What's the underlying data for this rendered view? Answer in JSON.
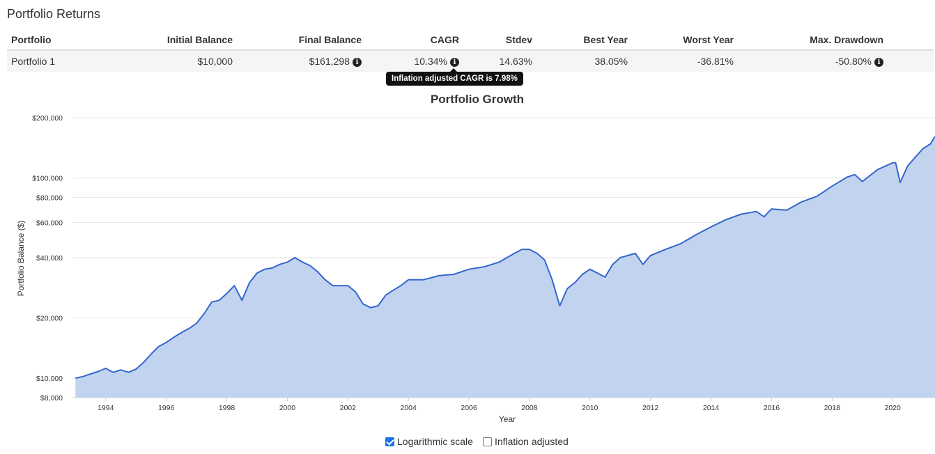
{
  "section_title": "Portfolio Returns",
  "table": {
    "headers": [
      "Portfolio",
      "Initial Balance",
      "Final Balance",
      "CAGR",
      "Stdev",
      "Best Year",
      "Worst Year",
      "Max. Drawdown"
    ],
    "rows": [
      {
        "portfolio": "Portfolio 1",
        "initial_balance": "$10,000",
        "final_balance": "$161,298",
        "cagr": "10.34%",
        "stdev": "14.63%",
        "best_year": "38.05%",
        "worst_year": "-36.81%",
        "max_drawdown": "-50.80%"
      }
    ]
  },
  "tooltip": "Inflation adjusted CAGR is 7.98%",
  "controls": {
    "log_scale_label": "Logarithmic scale",
    "log_scale_checked": true,
    "inflation_label": "Inflation adjusted",
    "inflation_checked": false
  },
  "chart_data": {
    "type": "area",
    "title": "Portfolio Growth",
    "xlabel": "Year",
    "ylabel": "Portfolio Balance ($)",
    "yscale": "log",
    "ylim": [
      8000,
      200000
    ],
    "xlim": [
      1992.9,
      2021.4
    ],
    "yticks": [
      8000,
      10000,
      20000,
      40000,
      60000,
      80000,
      100000,
      200000
    ],
    "ytick_labels": [
      "$8,000",
      "$10,000",
      "$20,000",
      "$40,000",
      "$60,000",
      "$80,000",
      "$100,000",
      "$200,000"
    ],
    "xticks": [
      1994,
      1996,
      1998,
      2000,
      2002,
      2004,
      2006,
      2008,
      2010,
      2012,
      2014,
      2016,
      2018,
      2020
    ],
    "grid": true,
    "line_color": "#3366cc",
    "fill_color": "#c2d3f0",
    "series": [
      {
        "x": [
          1993.0,
          1993.25,
          1993.5,
          1993.75,
          1994.0,
          1994.25,
          1994.5,
          1994.75,
          1995.0,
          1995.25,
          1995.5,
          1995.75,
          1996.0,
          1996.25,
          1996.5,
          1996.75,
          1997.0,
          1997.25,
          1997.5,
          1997.75,
          1998.0,
          1998.25,
          1998.5,
          1998.75,
          1999.0,
          1999.25,
          1999.5,
          1999.75,
          2000.0,
          2000.25,
          2000.5,
          2000.75,
          2001.0,
          2001.25,
          2001.5,
          2001.75,
          2002.0,
          2002.25,
          2002.5,
          2002.75,
          2003.0,
          2003.25,
          2003.5,
          2003.75,
          2004.0,
          2004.5,
          2005.0,
          2005.5,
          2006.0,
          2006.5,
          2007.0,
          2007.5,
          2007.75,
          2008.0,
          2008.25,
          2008.5,
          2008.75,
          2009.0,
          2009.25,
          2009.5,
          2009.75,
          2010.0,
          2010.5,
          2010.75,
          2011.0,
          2011.5,
          2011.75,
          2012.0,
          2012.5,
          2013.0,
          2013.5,
          2014.0,
          2014.5,
          2015.0,
          2015.5,
          2015.75,
          2016.0,
          2016.5,
          2017.0,
          2017.5,
          2018.0,
          2018.5,
          2018.75,
          2019.0,
          2019.5,
          2020.0,
          2020.1,
          2020.25,
          2020.5,
          2020.75,
          2021.0,
          2021.25,
          2021.4
        ],
        "y": [
          10000,
          10200,
          10500,
          10800,
          11200,
          10700,
          11000,
          10700,
          11100,
          12000,
          13200,
          14400,
          15100,
          16000,
          16900,
          17700,
          18800,
          21000,
          24000,
          24500,
          26500,
          29000,
          24500,
          30000,
          33500,
          35000,
          35500,
          37000,
          38000,
          40000,
          38000,
          36500,
          34000,
          31000,
          29000,
          29000,
          29000,
          27000,
          23500,
          22500,
          23000,
          26000,
          27500,
          29000,
          31000,
          31000,
          32500,
          33000,
          35000,
          36000,
          38000,
          42000,
          44000,
          44000,
          42000,
          39000,
          31000,
          23000,
          28000,
          30000,
          33000,
          35000,
          32000,
          37000,
          40000,
          42000,
          37000,
          41000,
          44000,
          47000,
          52000,
          57000,
          62000,
          66000,
          68000,
          64000,
          70000,
          69000,
          76000,
          81000,
          91000,
          101000,
          104000,
          96000,
          110000,
          119000,
          119000,
          95000,
          115000,
          127000,
          140000,
          148000,
          161298
        ]
      }
    ]
  }
}
